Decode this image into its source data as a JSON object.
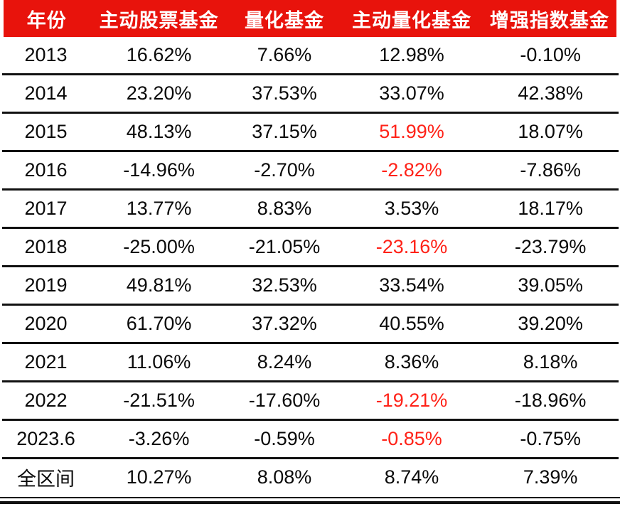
{
  "colors": {
    "header_bg": "#e8130c",
    "header_text": "#ffffff",
    "body_text": "#0a0a0a",
    "highlight_text": "#ff2218",
    "border": "#111111"
  },
  "table": {
    "columns": [
      "年份",
      "主动股票基金",
      "量化基金",
      "主动量化基金",
      "增强指数基金"
    ],
    "rows": [
      {
        "label": "2013",
        "values": [
          "16.62%",
          "7.66%",
          "12.98%",
          "-0.10%"
        ],
        "red_cols": []
      },
      {
        "label": "2014",
        "values": [
          "23.20%",
          "37.53%",
          "33.07%",
          "42.38%"
        ],
        "red_cols": []
      },
      {
        "label": "2015",
        "values": [
          "48.13%",
          "37.15%",
          "51.99%",
          "18.07%"
        ],
        "red_cols": [
          2
        ]
      },
      {
        "label": "2016",
        "values": [
          "-14.96%",
          "-2.70%",
          "-2.82%",
          "-7.86%"
        ],
        "red_cols": [
          2
        ]
      },
      {
        "label": "2017",
        "values": [
          "13.77%",
          "8.83%",
          "3.53%",
          "18.17%"
        ],
        "red_cols": []
      },
      {
        "label": "2018",
        "values": [
          "-25.00%",
          "-21.05%",
          "-23.16%",
          "-23.79%"
        ],
        "red_cols": [
          2
        ]
      },
      {
        "label": "2019",
        "values": [
          "49.81%",
          "32.53%",
          "33.54%",
          "39.05%"
        ],
        "red_cols": []
      },
      {
        "label": "2020",
        "values": [
          "61.70%",
          "37.32%",
          "40.55%",
          "39.20%"
        ],
        "red_cols": []
      },
      {
        "label": "2021",
        "values": [
          "11.06%",
          "8.24%",
          "8.36%",
          "8.18%"
        ],
        "red_cols": []
      },
      {
        "label": "2022",
        "values": [
          "-21.51%",
          "-17.60%",
          "-19.21%",
          "-18.96%"
        ],
        "red_cols": [
          2
        ]
      },
      {
        "label": "2023.6",
        "values": [
          "-3.26%",
          "-0.59%",
          "-0.85%",
          "-0.75%"
        ],
        "red_cols": [
          2
        ]
      },
      {
        "label": "全区间",
        "values": [
          "10.27%",
          "8.08%",
          "8.74%",
          "7.39%"
        ],
        "red_cols": []
      }
    ]
  },
  "chart_data": {
    "type": "table",
    "title": "",
    "columns": [
      "年份",
      "主动股票基金",
      "量化基金",
      "主动量化基金",
      "增强指数基金"
    ],
    "rows": [
      [
        "2013",
        "16.62%",
        "7.66%",
        "12.98%",
        "-0.10%"
      ],
      [
        "2014",
        "23.20%",
        "37.53%",
        "33.07%",
        "42.38%"
      ],
      [
        "2015",
        "48.13%",
        "37.15%",
        "51.99%",
        "18.07%"
      ],
      [
        "2016",
        "-14.96%",
        "-2.70%",
        "-2.82%",
        "-7.86%"
      ],
      [
        "2017",
        "13.77%",
        "8.83%",
        "3.53%",
        "18.17%"
      ],
      [
        "2018",
        "-25.00%",
        "-21.05%",
        "-23.16%",
        "-23.79%"
      ],
      [
        "2019",
        "49.81%",
        "32.53%",
        "33.54%",
        "39.05%"
      ],
      [
        "2020",
        "61.70%",
        "37.32%",
        "40.55%",
        "39.20%"
      ],
      [
        "2021",
        "11.06%",
        "8.24%",
        "8.36%",
        "8.18%"
      ],
      [
        "2022",
        "-21.51%",
        "-17.60%",
        "-19.21%",
        "-18.96%"
      ],
      [
        "2023.6",
        "-3.26%",
        "-0.59%",
        "-0.85%",
        "-0.75%"
      ],
      [
        "全区间",
        "10.27%",
        "8.08%",
        "8.74%",
        "7.39%"
      ]
    ],
    "highlight_note": "主动量化基金 column shown in red for rows 2015, 2016, 2018, 2022, 2023.6",
    "layout_hints": {
      "header_background": "red",
      "header_text_color": "white",
      "grid": "horizontal rules between rows, double rule at bottom"
    }
  }
}
